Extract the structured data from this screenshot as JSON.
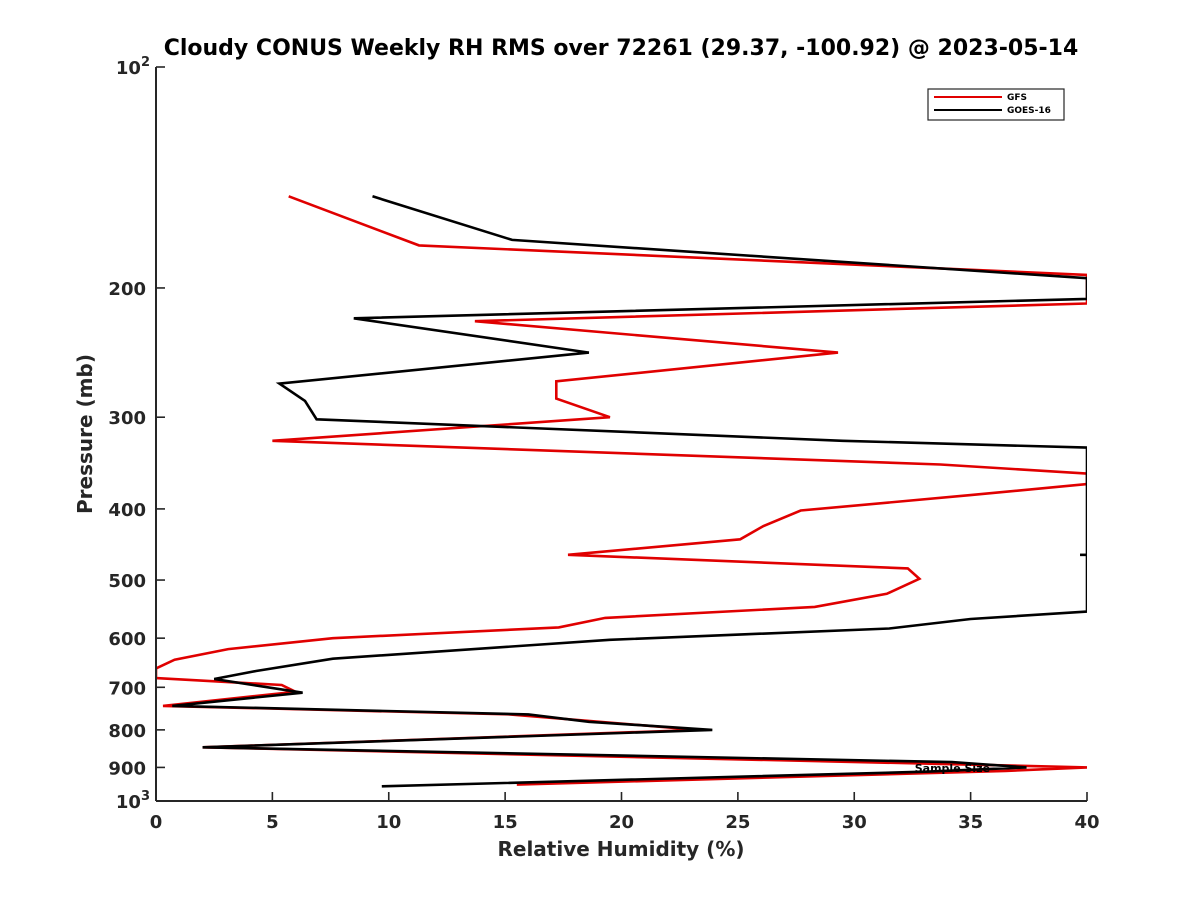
{
  "chart_data": {
    "type": "line",
    "title": "Cloudy CONUS Weekly RH RMS over 72261 (29.37, -100.92) @ 2023-05-14",
    "xlabel": "Relative Humidity (%)",
    "ylabel": "Pressure (mb)",
    "xlim": [
      0,
      40
    ],
    "ylim": [
      100,
      1000
    ],
    "y_scale": "log",
    "y_reversed": true,
    "grid": false,
    "legend_position": "top-right",
    "x_ticks": [
      0,
      5,
      10,
      15,
      20,
      25,
      30,
      35,
      40
    ],
    "x_tick_labels": [
      "0",
      "5",
      "10",
      "15",
      "20",
      "25",
      "30",
      "35",
      "40"
    ],
    "y_ticks": [
      100,
      200,
      300,
      400,
      500,
      600,
      700,
      800,
      900,
      1000
    ],
    "y_tick_labels": [
      {
        "base": "10",
        "exp": "2"
      },
      {
        "base": "200",
        "exp": ""
      },
      {
        "base": "300",
        "exp": ""
      },
      {
        "base": "400",
        "exp": ""
      },
      {
        "base": "500",
        "exp": ""
      },
      {
        "base": "600",
        "exp": ""
      },
      {
        "base": "700",
        "exp": ""
      },
      {
        "base": "800",
        "exp": ""
      },
      {
        "base": "900",
        "exp": ""
      },
      {
        "base": "10",
        "exp": "3"
      }
    ],
    "series": [
      {
        "name": "GFS",
        "color": "#e00000",
        "points": [
          [
            5.7,
            150
          ],
          [
            11.3,
            175
          ],
          [
            40.0,
            192
          ],
          [
            40.0,
            210
          ],
          [
            13.7,
            222
          ],
          [
            29.3,
            245
          ],
          [
            17.2,
            268
          ],
          [
            17.2,
            283
          ],
          [
            19.5,
            300
          ],
          [
            5.0,
            323
          ],
          [
            33.7,
            348
          ],
          [
            40.0,
            358
          ],
          [
            40.0,
            370
          ],
          [
            35.0,
            383
          ],
          [
            27.7,
            402
          ],
          [
            26.1,
            422
          ],
          [
            25.1,
            440
          ],
          [
            17.7,
            462
          ],
          [
            32.3,
            482
          ],
          [
            32.8,
            498
          ],
          [
            31.4,
            522
          ],
          [
            28.3,
            544
          ],
          [
            19.3,
            563
          ],
          [
            17.3,
            580
          ],
          [
            7.6,
            600
          ],
          [
            3.1,
            621
          ],
          [
            0.8,
            642
          ],
          [
            0.0,
            660
          ],
          [
            0.0,
            680
          ],
          [
            5.4,
            695
          ],
          [
            6.0,
            710
          ],
          [
            0.3,
            742
          ],
          [
            15.2,
            762
          ],
          [
            23.3,
            800
          ],
          [
            2.0,
            845
          ],
          [
            33.7,
            890
          ],
          [
            40.0,
            900
          ],
          [
            36.5,
            910
          ],
          [
            15.5,
            950
          ]
        ]
      },
      {
        "name": "GOES-16",
        "color": "#000000",
        "points": [
          [
            9.3,
            150
          ],
          [
            15.3,
            172
          ],
          [
            40.0,
            194
          ],
          [
            40.0,
            207
          ],
          [
            8.5,
            220
          ],
          [
            18.6,
            245
          ],
          [
            5.3,
            270
          ],
          [
            6.4,
            285
          ],
          [
            6.9,
            302
          ],
          [
            29.5,
            323
          ],
          [
            40.0,
            330
          ],
          [
            40.0,
            552
          ],
          [
            35.0,
            565
          ],
          [
            31.5,
            582
          ],
          [
            19.5,
            603
          ],
          [
            7.6,
            640
          ],
          [
            4.3,
            665
          ],
          [
            2.5,
            682
          ],
          [
            6.3,
            712
          ],
          [
            0.7,
            742
          ],
          [
            16.0,
            762
          ],
          [
            18.6,
            780
          ],
          [
            23.9,
            800
          ],
          [
            2.0,
            845
          ],
          [
            34.2,
            885
          ],
          [
            37.4,
            900
          ],
          [
            33.2,
            912
          ],
          [
            9.7,
            955
          ]
        ]
      }
    ],
    "stray_marks": [
      {
        "series": "GOES-16",
        "x0": 39.7,
        "x1": 40.0,
        "p": 462
      }
    ],
    "annotations": [
      {
        "text": "Sample Size",
        "x": 32.6,
        "p": 902
      }
    ]
  }
}
